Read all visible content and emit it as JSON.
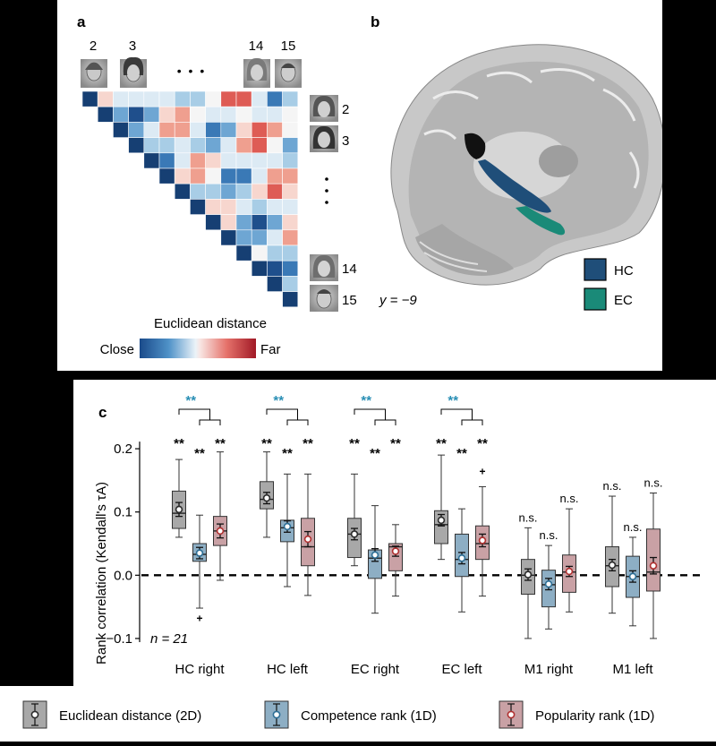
{
  "panel_a": {
    "label": "a",
    "face_top_labels": [
      "2",
      "3",
      "14",
      "15"
    ],
    "face_side_labels": [
      "2",
      "3",
      "14",
      "15"
    ],
    "ellipsis_h": "• • •",
    "colorbar": {
      "title": "Euclidean distance",
      "low": "Close",
      "high": "Far"
    }
  },
  "panel_b": {
    "label": "b",
    "coord": "y = −9",
    "legend": [
      {
        "name": "HC",
        "color": "#1f4e79"
      },
      {
        "name": "EC",
        "color": "#1a8a78"
      }
    ]
  },
  "panel_c": {
    "label": "c",
    "n_label": "n = 21",
    "ns_label": "n.s.",
    "sig_label": "**"
  },
  "chart_data": {
    "type": "box",
    "ylabel": "Rank correlation (Kendall's τA)",
    "ylim": [
      -0.11,
      0.21
    ],
    "yticks": [
      "0.2",
      "0.1",
      "0.0",
      "−0.1"
    ],
    "ytick_values": [
      0.2,
      0.1,
      0.0,
      -0.1
    ],
    "categories": [
      "HC right",
      "HC left",
      "EC right",
      "EC left",
      "M1 right",
      "M1 left"
    ],
    "series": [
      {
        "name": "Euclidean distance (2D)",
        "color": "#a8a8a8",
        "marker": "#2b2b2b"
      },
      {
        "name": "Competence rank (1D)",
        "color": "#8daec4",
        "marker": "#2d6f96"
      },
      {
        "name": "Popularity rank (1D)",
        "color": "#c9a1a5",
        "marker": "#b03030"
      }
    ],
    "boxes": [
      [
        {
          "lo": 0.06,
          "q1": 0.074,
          "med": 0.098,
          "q3": 0.133,
          "hi": 0.183,
          "mean": 0.104,
          "err": 0.011,
          "sig": "**"
        },
        {
          "lo": -0.052,
          "q1": 0.022,
          "med": 0.033,
          "q3": 0.05,
          "hi": 0.095,
          "mean": 0.035,
          "err": 0.009,
          "sig": "**",
          "outlier": -0.068
        },
        {
          "lo": -0.008,
          "q1": 0.047,
          "med": 0.07,
          "q3": 0.093,
          "hi": 0.195,
          "mean": 0.07,
          "err": 0.011,
          "sig": "**"
        }
      ],
      [
        {
          "lo": 0.06,
          "q1": 0.105,
          "med": 0.12,
          "q3": 0.148,
          "hi": 0.195,
          "mean": 0.122,
          "err": 0.009,
          "sig": "**"
        },
        {
          "lo": -0.018,
          "q1": 0.053,
          "med": 0.075,
          "q3": 0.087,
          "hi": 0.16,
          "mean": 0.077,
          "err": 0.009,
          "sig": "**"
        },
        {
          "lo": -0.032,
          "q1": 0.015,
          "med": 0.045,
          "q3": 0.09,
          "hi": 0.16,
          "mean": 0.057,
          "err": 0.012,
          "sig": "**"
        }
      ],
      [
        {
          "lo": 0.015,
          "q1": 0.028,
          "med": 0.065,
          "q3": 0.09,
          "hi": 0.16,
          "mean": 0.065,
          "err": 0.009,
          "sig": "**"
        },
        {
          "lo": -0.06,
          "q1": -0.005,
          "med": 0.027,
          "q3": 0.04,
          "hi": 0.11,
          "mean": 0.032,
          "err": 0.01,
          "sig": "**"
        },
        {
          "lo": -0.033,
          "q1": 0.007,
          "med": 0.045,
          "q3": 0.05,
          "hi": 0.08,
          "mean": 0.038,
          "err": 0.008,
          "sig": "**"
        }
      ],
      [
        {
          "lo": 0.025,
          "q1": 0.05,
          "med": 0.08,
          "q3": 0.102,
          "hi": 0.19,
          "mean": 0.087,
          "err": 0.009,
          "sig": "**"
        },
        {
          "lo": -0.058,
          "q1": -0.002,
          "med": 0.025,
          "q3": 0.065,
          "hi": 0.105,
          "mean": 0.027,
          "err": 0.009,
          "sig": "**"
        },
        {
          "lo": -0.033,
          "q1": 0.025,
          "med": 0.05,
          "q3": 0.078,
          "hi": 0.14,
          "mean": 0.055,
          "err": 0.01,
          "sig": "**",
          "outlier": 0.164
        }
      ],
      [
        {
          "lo": -0.1,
          "q1": -0.03,
          "med": 0.0,
          "q3": 0.025,
          "hi": 0.075,
          "mean": 0.001,
          "err": 0.009,
          "sig": "n.s."
        },
        {
          "lo": -0.085,
          "q1": -0.05,
          "med": -0.015,
          "q3": 0.008,
          "hi": 0.047,
          "mean": -0.014,
          "err": 0.009,
          "sig": "n.s."
        },
        {
          "lo": -0.058,
          "q1": -0.027,
          "med": 0.005,
          "q3": 0.032,
          "hi": 0.105,
          "mean": 0.006,
          "err": 0.008,
          "sig": "n.s."
        }
      ],
      [
        {
          "lo": -0.06,
          "q1": -0.018,
          "med": 0.015,
          "q3": 0.045,
          "hi": 0.125,
          "mean": 0.016,
          "err": 0.009,
          "sig": "n.s."
        },
        {
          "lo": -0.08,
          "q1": -0.035,
          "med": -0.002,
          "q3": 0.03,
          "hi": 0.06,
          "mean": -0.002,
          "err": 0.009,
          "sig": "n.s."
        },
        {
          "lo": -0.1,
          "q1": -0.025,
          "med": 0.005,
          "q3": 0.073,
          "hi": 0.13,
          "mean": 0.015,
          "err": 0.013,
          "sig": "n.s."
        }
      ]
    ],
    "brackets": [
      {
        "category": "HC right",
        "label": "**",
        "color": "#2a8fb5"
      },
      {
        "category": "HC left",
        "label": "**",
        "color": "#2a8fb5"
      },
      {
        "category": "EC right",
        "label": "**",
        "color": "#2a8fb5"
      },
      {
        "category": "EC left",
        "label": "**",
        "color": "#2a8fb5"
      }
    ]
  }
}
